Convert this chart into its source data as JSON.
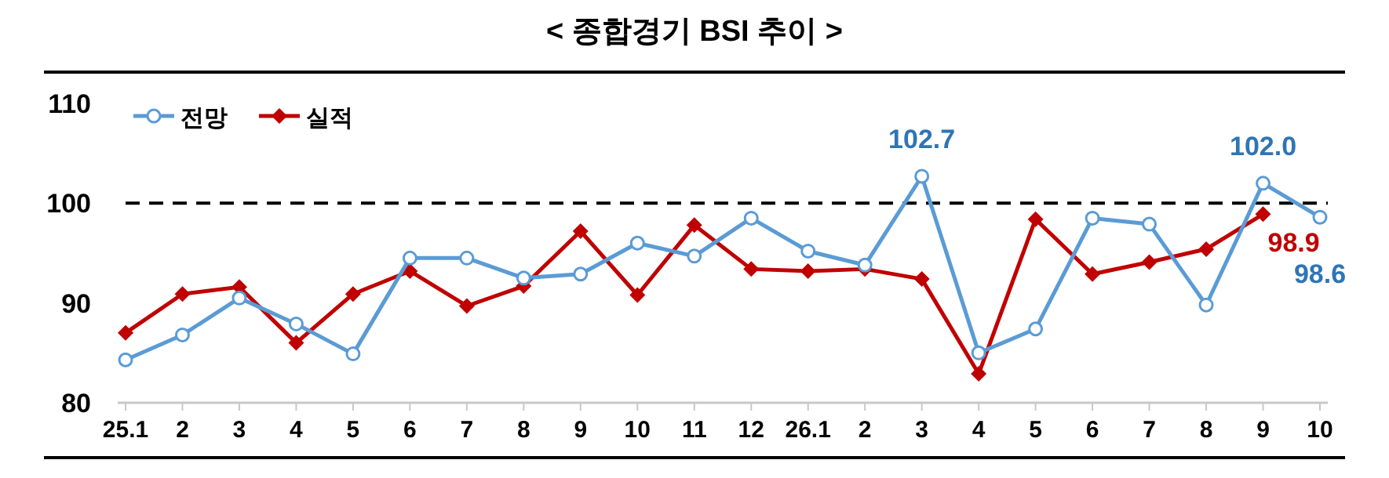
{
  "chart_data": {
    "type": "line",
    "title": "< 종합경기 BSI 추이 >",
    "categories": [
      "25.1",
      "2",
      "3",
      "4",
      "5",
      "6",
      "7",
      "8",
      "9",
      "10",
      "11",
      "12",
      "26.1",
      "2",
      "3",
      "4",
      "5",
      "6",
      "7",
      "8",
      "9",
      "10"
    ],
    "series": [
      {
        "name": "전망",
        "color": "#5b9bd5",
        "marker": "circle",
        "values": [
          84.3,
          86.8,
          90.5,
          87.9,
          84.9,
          94.5,
          94.5,
          92.5,
          92.9,
          96.0,
          94.7,
          98.5,
          95.2,
          93.8,
          102.7,
          85.0,
          87.4,
          98.5,
          97.9,
          89.8,
          102.0,
          98.6
        ],
        "value_labels": [
          null,
          null,
          null,
          null,
          null,
          null,
          null,
          null,
          null,
          null,
          null,
          null,
          null,
          null,
          "102.7",
          null,
          null,
          null,
          null,
          null,
          "102.0",
          "98.6"
        ]
      },
      {
        "name": "실적",
        "color": "#c00000",
        "marker": "diamond",
        "values": [
          87.0,
          90.9,
          91.6,
          86.0,
          90.9,
          93.2,
          89.7,
          91.7,
          97.2,
          90.8,
          97.8,
          93.4,
          93.2,
          93.4,
          92.4,
          82.9,
          98.4,
          92.9,
          94.1,
          95.4,
          98.9,
          null
        ],
        "value_labels": [
          null,
          null,
          null,
          null,
          null,
          null,
          null,
          null,
          null,
          null,
          null,
          null,
          null,
          null,
          null,
          null,
          null,
          null,
          null,
          null,
          "98.9",
          null
        ]
      }
    ],
    "ylim": [
      80,
      110
    ],
    "yticks": [
      80,
      90,
      100,
      110
    ],
    "grid": false,
    "legend": "top left",
    "ref_lines": [
      {
        "axis": "y",
        "value": 100,
        "line_style": "dashed",
        "color": "#000000"
      }
    ]
  }
}
